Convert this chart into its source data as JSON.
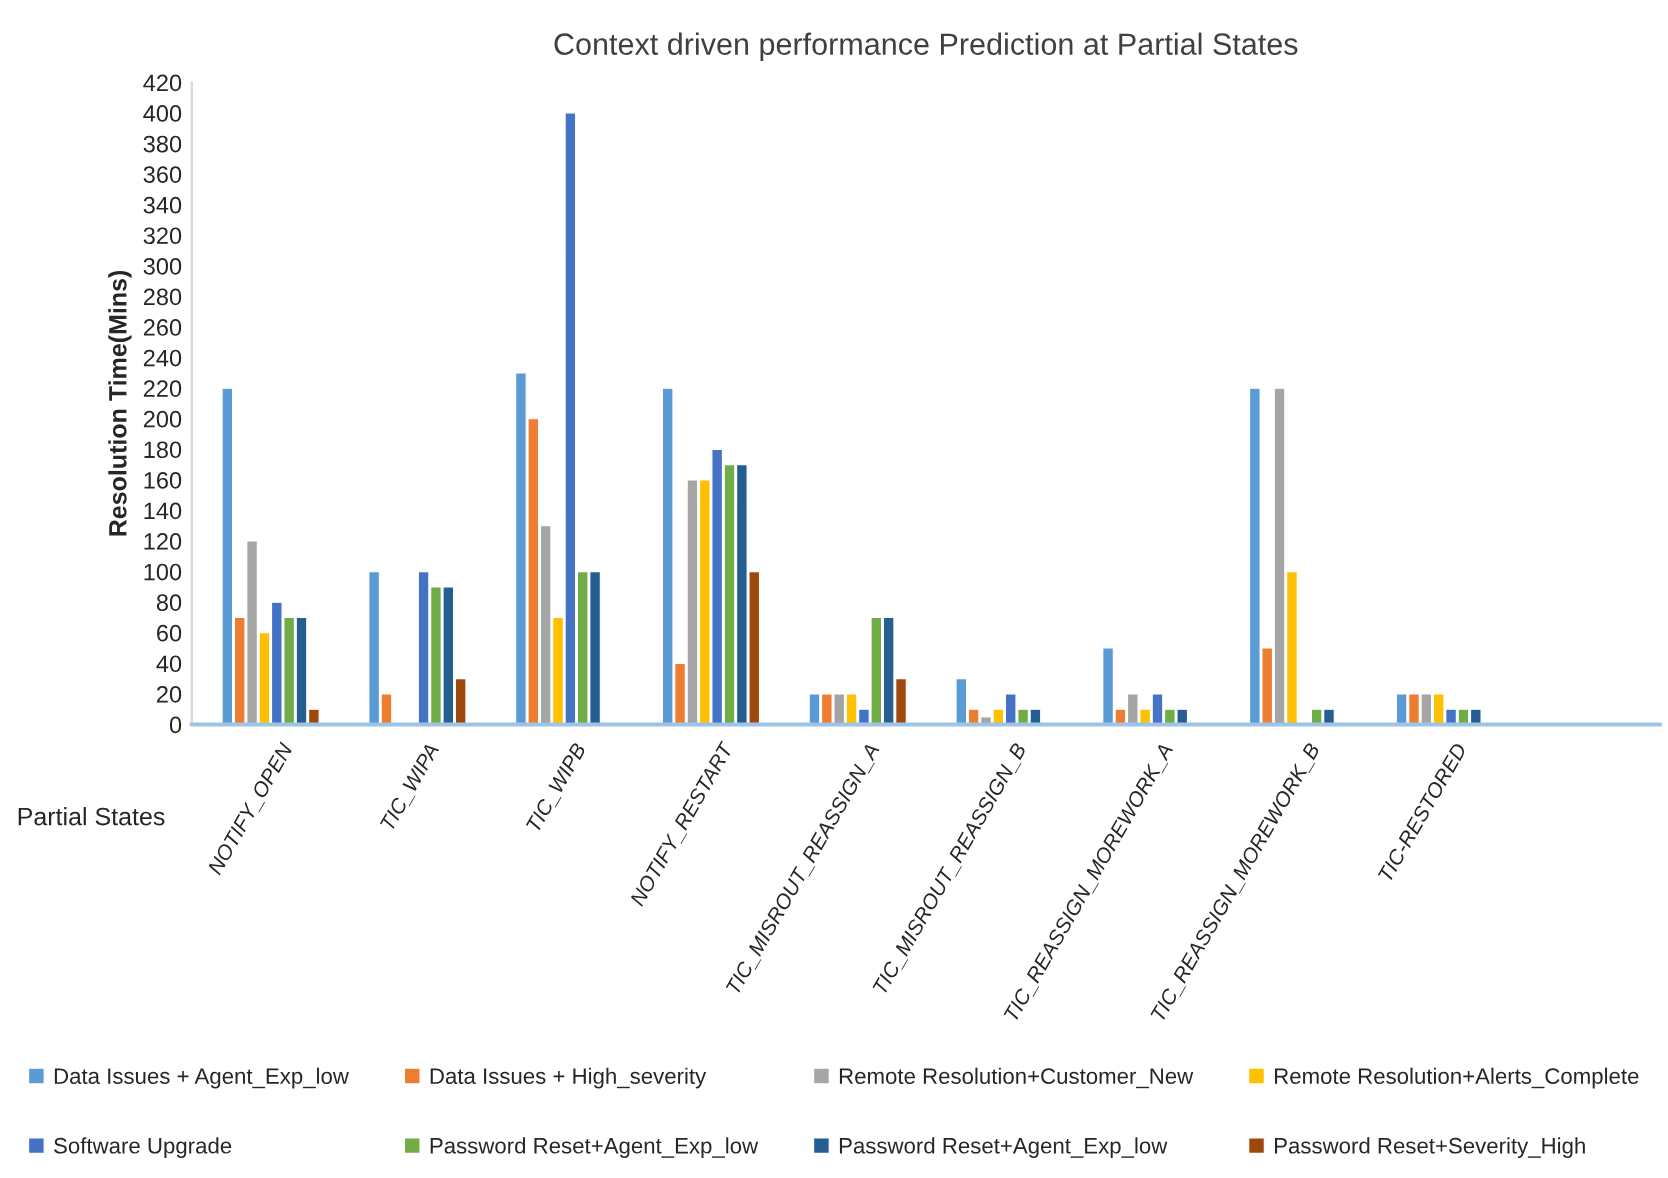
{
  "chart_data": {
    "type": "bar",
    "title": "Context driven performance Prediction at Partial States",
    "xlabel": "Partial States",
    "ylabel": "Resolution Time(Mins)",
    "categories": [
      "NOTIFY_OPEN",
      "TIC_WIPA",
      "TIC_WIPB",
      "NOTIFY_RESTART",
      "TIC_MISROUT_REASSIGN_A",
      "TIC_MISROUT_REASSIGN_B",
      "TIC_REASSIGN_MOREWORK_A",
      "TIC_REASSIGN_MOREWORK_B",
      "TIC-RESTORED"
    ],
    "series": [
      {
        "name": "Data Issues + Agent_Exp_low",
        "color": "#5b9bd5",
        "values": [
          220,
          100,
          230,
          220,
          20,
          30,
          50,
          220,
          20
        ]
      },
      {
        "name": "Data Issues + High_severity",
        "color": "#ed7d31",
        "values": [
          70,
          20,
          200,
          40,
          20,
          10,
          10,
          50,
          20
        ]
      },
      {
        "name": "Remote Resolution+Customer_New",
        "color": "#a5a5a5",
        "values": [
          120,
          null,
          130,
          160,
          20,
          5,
          20,
          220,
          20
        ]
      },
      {
        "name": "Remote Resolution+Alerts_Complete",
        "color": "#ffc000",
        "values": [
          60,
          null,
          70,
          160,
          20,
          10,
          10,
          100,
          20
        ]
      },
      {
        "name": "Software Upgrade",
        "color": "#4472c4",
        "values": [
          80,
          100,
          400,
          180,
          10,
          20,
          20,
          null,
          10
        ]
      },
      {
        "name": "Password Reset+Agent_Exp_low",
        "color": "#70ad47",
        "values": [
          70,
          90,
          100,
          170,
          70,
          10,
          10,
          10,
          10
        ]
      },
      {
        "name": "Password Reset+Agent_Exp_low",
        "color": "#255e91",
        "values": [
          70,
          90,
          100,
          170,
          70,
          10,
          10,
          10,
          10
        ]
      },
      {
        "name": "Password Reset+Severity_High",
        "color": "#9e480e",
        "values": [
          10,
          30,
          null,
          100,
          30,
          null,
          null,
          null,
          null
        ]
      }
    ],
    "ylim": [
      0,
      420
    ],
    "yticks": [
      0,
      20,
      40,
      60,
      80,
      100,
      120,
      140,
      160,
      180,
      200,
      220,
      240,
      260,
      280,
      300,
      320,
      340,
      360,
      380,
      400,
      420
    ],
    "grid": false,
    "legend": "bottom"
  }
}
